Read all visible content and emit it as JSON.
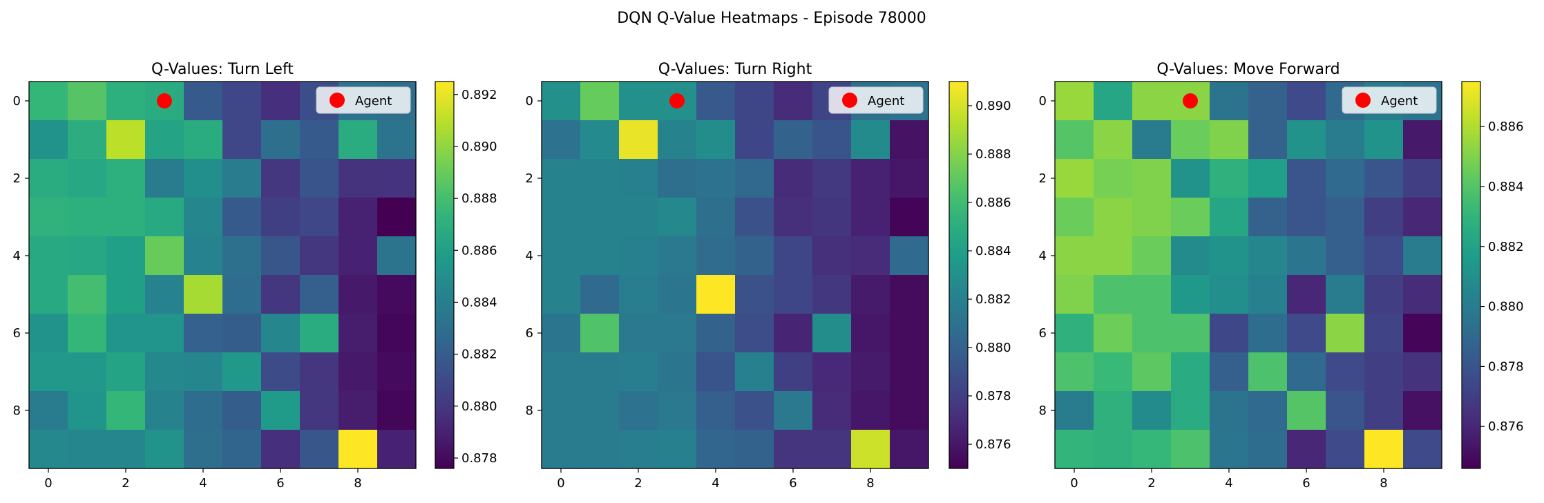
{
  "suptitle": "DQN Q-Value Heatmaps - Episode 78000",
  "colors": {
    "agent": "#ff0000",
    "legend_bg": "#ffffff",
    "axes": "#000000"
  },
  "chart_data": [
    {
      "type": "heatmap",
      "title": "Q-Values: Turn Left",
      "x_ticks": [
        0,
        2,
        4,
        6,
        8
      ],
      "y_ticks": [
        0,
        2,
        4,
        6,
        8
      ],
      "colormap": "viridis",
      "vmin": 0.8776,
      "vmax": 0.8925,
      "colorbar_ticks": [
        "0.878",
        "0.880",
        "0.882",
        "0.884",
        "0.886",
        "0.888",
        "0.890",
        "0.892"
      ],
      "agent": {
        "x": 3,
        "y": 0,
        "label": "Agent"
      },
      "values": [
        [
          0.8875,
          0.8885,
          0.887,
          0.8868,
          0.8818,
          0.8808,
          0.8796,
          0.8812,
          0.8832,
          0.883
        ],
        [
          0.8852,
          0.8869,
          0.891,
          0.8863,
          0.8868,
          0.8808,
          0.883,
          0.8818,
          0.8868,
          0.8833
        ],
        [
          0.8868,
          0.8865,
          0.887,
          0.8838,
          0.885,
          0.8838,
          0.88,
          0.8815,
          0.8798,
          0.8798
        ],
        [
          0.8872,
          0.887,
          0.887,
          0.8866,
          0.8845,
          0.8818,
          0.8804,
          0.8808,
          0.879,
          0.8776
        ],
        [
          0.8866,
          0.8865,
          0.886,
          0.889,
          0.8842,
          0.8831,
          0.8816,
          0.88,
          0.879,
          0.8833
        ],
        [
          0.8866,
          0.888,
          0.886,
          0.8842,
          0.8905,
          0.8829,
          0.88,
          0.8821,
          0.8786,
          0.878
        ],
        [
          0.8852,
          0.8875,
          0.8853,
          0.8853,
          0.8822,
          0.882,
          0.8845,
          0.8868,
          0.8788,
          0.8778
        ],
        [
          0.8855,
          0.8855,
          0.8863,
          0.8846,
          0.8845,
          0.8856,
          0.881,
          0.88,
          0.8786,
          0.878
        ],
        [
          0.8838,
          0.8853,
          0.8875,
          0.8843,
          0.8829,
          0.882,
          0.8857,
          0.88,
          0.8788,
          0.8778
        ],
        [
          0.8846,
          0.8845,
          0.8845,
          0.8852,
          0.883,
          0.8824,
          0.8796,
          0.8816,
          0.8925,
          0.879
        ]
      ]
    },
    {
      "type": "heatmap",
      "title": "Q-Values: Turn Right",
      "x_ticks": [
        0,
        2,
        4,
        6,
        8
      ],
      "y_ticks": [
        0,
        2,
        4,
        6,
        8
      ],
      "colormap": "viridis",
      "vmin": 0.875,
      "vmax": 0.891,
      "colorbar_ticks": [
        "0.876",
        "0.878",
        "0.880",
        "0.882",
        "0.884",
        "0.886",
        "0.888",
        "0.890"
      ],
      "agent": {
        "x": 3,
        "y": 0,
        "label": "Agent"
      },
      "values": [
        [
          0.883,
          0.8872,
          0.883,
          0.883,
          0.8795,
          0.8784,
          0.877,
          0.8783,
          0.8808,
          0.881
        ],
        [
          0.881,
          0.8826,
          0.8905,
          0.8822,
          0.8828,
          0.8784,
          0.88,
          0.8792,
          0.8827,
          0.8758
        ],
        [
          0.8822,
          0.8822,
          0.882,
          0.8808,
          0.881,
          0.8804,
          0.877,
          0.8777,
          0.8765,
          0.876
        ],
        [
          0.8822,
          0.8822,
          0.8822,
          0.8825,
          0.8808,
          0.879,
          0.8772,
          0.8775,
          0.8765,
          0.8752
        ],
        [
          0.8822,
          0.8822,
          0.882,
          0.8815,
          0.8806,
          0.88,
          0.8784,
          0.8772,
          0.877,
          0.8805
        ],
        [
          0.8822,
          0.8805,
          0.8818,
          0.8812,
          0.891,
          0.879,
          0.8784,
          0.8776,
          0.8762,
          0.8755
        ],
        [
          0.8812,
          0.8865,
          0.8815,
          0.8815,
          0.88,
          0.8788,
          0.8766,
          0.8828,
          0.876,
          0.8755
        ],
        [
          0.8816,
          0.8816,
          0.8818,
          0.8812,
          0.8792,
          0.882,
          0.878,
          0.8768,
          0.8762,
          0.8755
        ],
        [
          0.8816,
          0.8816,
          0.881,
          0.8815,
          0.8798,
          0.879,
          0.8815,
          0.877,
          0.876,
          0.8755
        ],
        [
          0.8816,
          0.8816,
          0.8818,
          0.882,
          0.8802,
          0.88,
          0.8774,
          0.8774,
          0.8898,
          0.876
        ]
      ]
    },
    {
      "type": "heatmap",
      "title": "Q-Values: Move Forward",
      "x_ticks": [
        0,
        2,
        4,
        6,
        8
      ],
      "y_ticks": [
        0,
        2,
        4,
        6,
        8
      ],
      "colormap": "viridis",
      "vmin": 0.8746,
      "vmax": 0.8875,
      "colorbar_ticks": [
        "0.876",
        "0.878",
        "0.880",
        "0.882",
        "0.884",
        "0.886"
      ],
      "agent": {
        "x": 3,
        "y": 0,
        "label": "Agent"
      },
      "values": [
        [
          0.8855,
          0.8822,
          0.8852,
          0.8852,
          0.8795,
          0.8786,
          0.8775,
          0.879,
          0.88,
          0.8795
        ],
        [
          0.884,
          0.8852,
          0.88,
          0.8845,
          0.885,
          0.8786,
          0.8812,
          0.88,
          0.8812,
          0.8755
        ],
        [
          0.8855,
          0.8848,
          0.885,
          0.8812,
          0.8828,
          0.8818,
          0.878,
          0.879,
          0.878,
          0.877
        ],
        [
          0.8845,
          0.8852,
          0.885,
          0.8845,
          0.8822,
          0.8786,
          0.878,
          0.8785,
          0.877,
          0.876
        ],
        [
          0.8852,
          0.8852,
          0.8845,
          0.8808,
          0.8812,
          0.8806,
          0.8796,
          0.8785,
          0.8775,
          0.88
        ],
        [
          0.885,
          0.8838,
          0.8838,
          0.8815,
          0.881,
          0.8802,
          0.876,
          0.88,
          0.877,
          0.8762
        ],
        [
          0.8828,
          0.8846,
          0.8838,
          0.8838,
          0.8774,
          0.8792,
          0.8775,
          0.8852,
          0.8772,
          0.8748
        ],
        [
          0.8838,
          0.8833,
          0.8842,
          0.8825,
          0.8785,
          0.8838,
          0.879,
          0.8775,
          0.877,
          0.8765
        ],
        [
          0.88,
          0.8828,
          0.8808,
          0.8825,
          0.8795,
          0.879,
          0.884,
          0.878,
          0.877,
          0.8752
        ],
        [
          0.883,
          0.8828,
          0.8832,
          0.8838,
          0.8796,
          0.8792,
          0.876,
          0.8775,
          0.8875,
          0.8775
        ]
      ]
    }
  ]
}
